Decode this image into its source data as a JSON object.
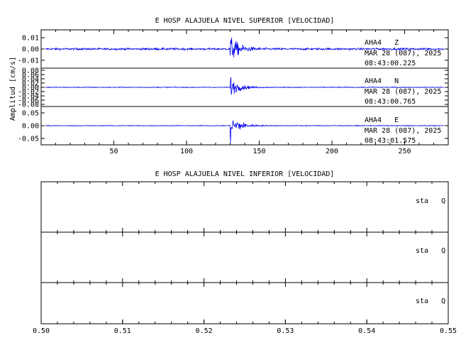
{
  "chart_data": [
    {
      "type": "line",
      "title": "E HOSP ALAJUELA NIVEL SUPERIOR [VELOCIDAD]",
      "ylabel": "Amplitud [cm/s]",
      "xlabel": "",
      "xlim": [
        0,
        280
      ],
      "x_ticks": [
        50,
        100,
        150,
        200,
        250
      ],
      "grid": false,
      "color": "#0000ee",
      "event_onset": 130,
      "traces": [
        {
          "station_label": "AHA4   Z",
          "date_label": "MAR 28 (087), 2025",
          "time_label": "08:43:00.225",
          "y_ticks": [
            "0.01",
            "0.00",
            "-0.01"
          ],
          "y_tick_values": [
            0.01,
            0.0,
            -0.01
          ],
          "ylim": [
            -0.017,
            0.017
          ],
          "noise_amplitude": 0.0009,
          "peak_amplitude": 0.016,
          "decay_seconds": 6
        },
        {
          "station_label": "AHA4   N",
          "date_label": "MAR 28 (087), 2025",
          "time_label": "08:43:00.765",
          "y_ticks": [
            "0.08",
            "0.06",
            "0.04",
            "0.02",
            "0.00",
            "-0.02",
            "-0.04",
            "-0.06",
            "-0.08"
          ],
          "y_tick_values": [
            0.08,
            0.06,
            0.04,
            0.02,
            0.0,
            -0.02,
            -0.04,
            -0.06,
            -0.08
          ],
          "ylim": [
            -0.09,
            0.09
          ],
          "noise_amplitude": 0.002,
          "peak_amplitude": 0.06,
          "decay_seconds": 6
        },
        {
          "station_label": "AHA4   E",
          "date_label": "MAR 28 (087), 2025",
          "time_label": "08:43:01.575",
          "y_ticks": [
            "0.05",
            "0.00",
            "-0.05"
          ],
          "y_tick_values": [
            0.05,
            0.0,
            -0.05
          ],
          "ylim": [
            -0.075,
            0.075
          ],
          "noise_amplitude": 0.0015,
          "peak_amplitude": 0.07,
          "decay_seconds": 6
        }
      ]
    },
    {
      "type": "line",
      "title": "E HOSP ALAJUELA NIVEL INFERIOR [VELOCIDAD]",
      "xlabel": "",
      "ylabel": "",
      "xlim": [
        0.5,
        0.55
      ],
      "x_ticks": [
        "0.50",
        "0.51",
        "0.52",
        "0.53",
        "0.54",
        "0.55"
      ],
      "x_tick_values": [
        0.5,
        0.51,
        0.52,
        0.53,
        0.54,
        0.55
      ],
      "grid": false,
      "traces": [
        {
          "station_label": "sta   Q"
        },
        {
          "station_label": "sta   Q"
        },
        {
          "station_label": "sta   Q"
        }
      ]
    }
  ]
}
